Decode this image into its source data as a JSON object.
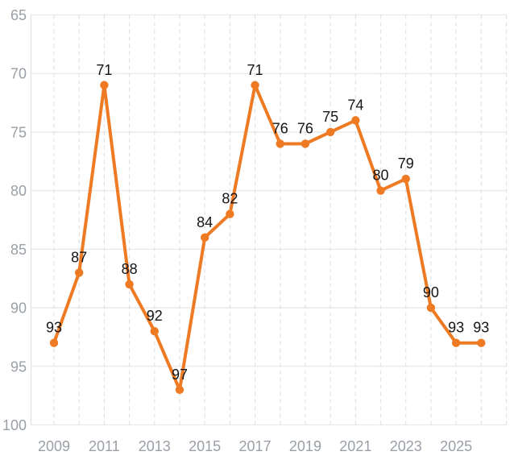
{
  "chart_data": {
    "type": "line",
    "title": "",
    "xlabel": "",
    "ylabel": "",
    "x": [
      2009,
      2010,
      2011,
      2012,
      2013,
      2014,
      2015,
      2016,
      2017,
      2018,
      2019,
      2020,
      2021,
      2022,
      2023,
      2024,
      2025,
      2026
    ],
    "values": [
      93,
      87,
      71,
      88,
      92,
      97,
      84,
      82,
      71,
      76,
      76,
      75,
      74,
      80,
      79,
      90,
      93,
      93
    ],
    "point_labels": [
      "93",
      "87",
      "71",
      "88",
      "92",
      "97",
      "84",
      "82",
      "71",
      "76",
      "76",
      "75",
      "74",
      "80",
      "79",
      "90",
      "93",
      "93"
    ],
    "x_tick_years": [
      2009,
      2011,
      2013,
      2015,
      2017,
      2019,
      2021,
      2023,
      2025
    ],
    "x_tick_labels": [
      "2009",
      "2011",
      "2013",
      "2015",
      "2017",
      "2019",
      "2021",
      "2023",
      "2025"
    ],
    "y_ticks": [
      65,
      70,
      75,
      80,
      85,
      90,
      95,
      100
    ],
    "y_tick_labels": [
      "65",
      "70",
      "75",
      "80",
      "85",
      "90",
      "95",
      "100"
    ],
    "ylim": [
      65,
      100
    ],
    "y_axis_inverted": true,
    "grid_years_end": 2027,
    "grid": "horizontal-solid, vertical-dashed",
    "legend": "none",
    "colors": {
      "line": "#ee7b23",
      "marker": "#ee7b23",
      "data_label": "#151515",
      "axis_label": "#9aa0a6",
      "gridline_horizontal": "#e8e9ea",
      "gridline_vertical": "#e0e2e5",
      "axis_line": "#e0e2e5",
      "background": "#ffffff"
    }
  }
}
